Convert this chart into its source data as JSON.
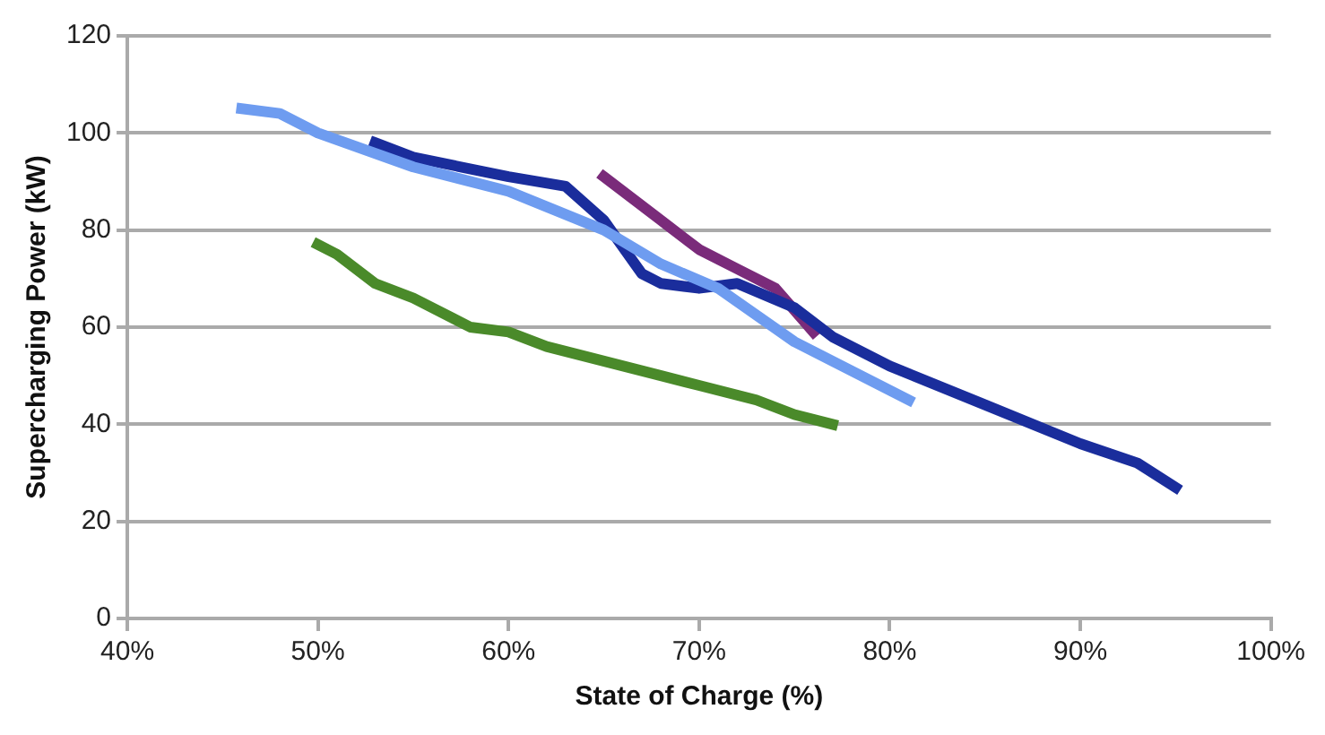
{
  "chart_data": {
    "type": "line",
    "xlabel": "State of Charge (%)",
    "ylabel": "Supercharging Power (kW)",
    "xlim": [
      40,
      100
    ],
    "ylim": [
      0,
      120
    ],
    "xticks": [
      {
        "value": 40,
        "label": "40%"
      },
      {
        "value": 50,
        "label": "50%"
      },
      {
        "value": 60,
        "label": "60%"
      },
      {
        "value": 70,
        "label": "70%"
      },
      {
        "value": 80,
        "label": "80%"
      },
      {
        "value": 90,
        "label": "90%"
      },
      {
        "value": 100,
        "label": "100%"
      }
    ],
    "yticks": [
      0,
      20,
      40,
      60,
      80,
      100,
      120
    ],
    "grid": "y",
    "legend": false,
    "marker": "none",
    "line_style": "solid",
    "series": [
      {
        "color": "#6e9cf0",
        "x": [
          46,
          48,
          50,
          55,
          60,
          65,
          68,
          71,
          75,
          78,
          81
        ],
        "values": [
          105,
          104,
          100,
          93,
          88,
          80,
          73,
          68,
          57,
          51,
          45
        ]
      },
      {
        "color": "#1a2d9c",
        "x": [
          53,
          55,
          60,
          63,
          65,
          67,
          68,
          70,
          72,
          75,
          77,
          80,
          85,
          90,
          93,
          95
        ],
        "values": [
          98,
          95,
          91,
          89,
          82,
          71,
          69,
          68,
          69,
          64,
          58,
          52,
          44,
          36,
          32,
          27
        ]
      },
      {
        "color": "#7a2b7a",
        "x": [
          65,
          68,
          70,
          72,
          74,
          76
        ],
        "values": [
          91,
          82,
          76,
          72,
          68,
          59
        ]
      },
      {
        "color": "#4a8a2a",
        "x": [
          50,
          51,
          53,
          55,
          58,
          60,
          62,
          65,
          68,
          70,
          73,
          75,
          77
        ],
        "values": [
          77,
          75,
          69,
          66,
          60,
          59,
          56,
          53,
          50,
          48,
          45,
          42,
          40
        ]
      }
    ]
  }
}
